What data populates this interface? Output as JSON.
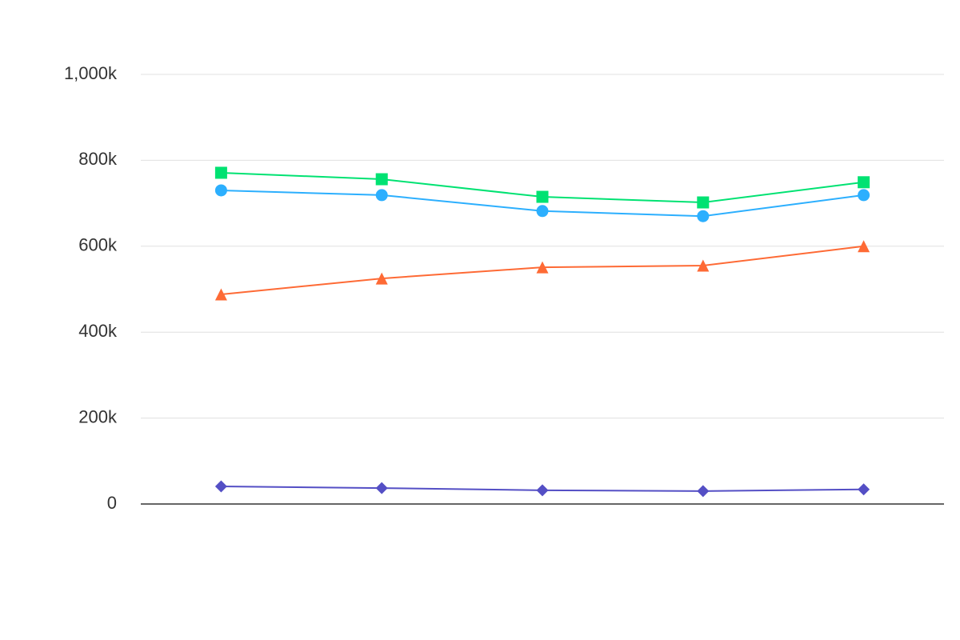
{
  "chart_data": {
    "type": "line",
    "categories": [
      null,
      null,
      null,
      null,
      null
    ],
    "series": [
      {
        "color": "#00e272",
        "marker": "square",
        "values": [
          771000,
          756000,
          715000,
          702000,
          749000
        ]
      },
      {
        "color": "#2caffe",
        "marker": "circle",
        "values": [
          730000,
          719000,
          682000,
          670000,
          719000
        ]
      },
      {
        "color": "#fe6a35",
        "marker": "triangle",
        "values": [
          488000,
          525000,
          551000,
          555000,
          600000
        ]
      },
      {
        "color": "#544fc5",
        "marker": "diamond",
        "values": [
          41000,
          37000,
          32000,
          30000,
          34000
        ]
      }
    ],
    "ylim": [
      0,
      1000000
    ],
    "yticks": [
      0,
      {
        "value": 200000,
        "label": "200k"
      },
      {
        "value": 400000,
        "label": "400k"
      },
      {
        "value": 600000,
        "label": "600k"
      },
      {
        "value": 800000,
        "label": "800k"
      },
      {
        "value": 1000000,
        "label": "1,000k"
      }
    ],
    "grid": true
  }
}
